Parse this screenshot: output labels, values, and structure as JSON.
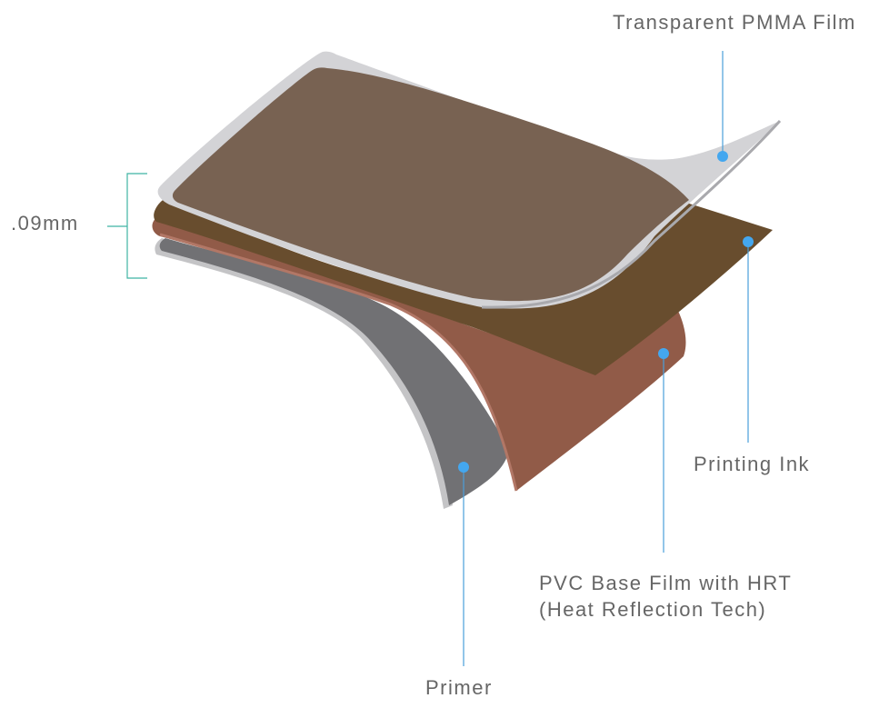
{
  "labels": {
    "pmma": "Transparent PMMA Film",
    "ink": "Printing Ink",
    "pvc_line1": "PVC Base Film with HRT",
    "pvc_line2": "(Heat Reflection Tech)",
    "primer": "Primer",
    "thickness": ".09mm"
  },
  "colors": {
    "pmma_film": "#d3d3d6",
    "artwork": "#786252",
    "ink": "#684d2e",
    "pvc": "#915b48",
    "primer": "#717174",
    "leader_line": "#4a9fda",
    "marker": "#44a7ef",
    "bracket": "#3fb3a3",
    "text": "#666666"
  }
}
